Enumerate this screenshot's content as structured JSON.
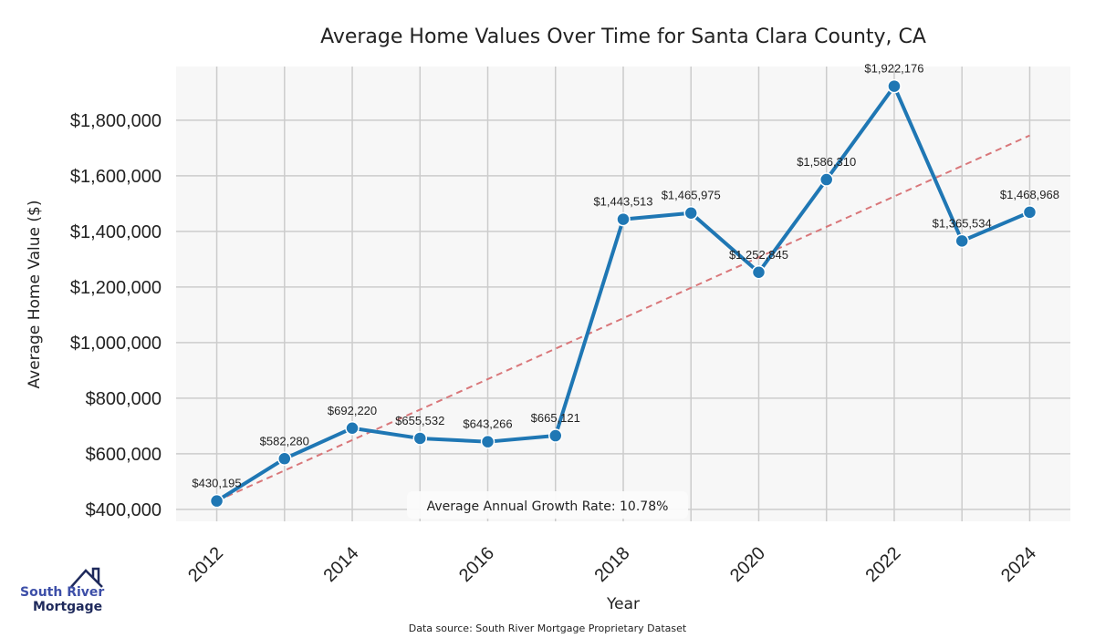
{
  "chart_data": {
    "type": "line",
    "title": "Average Home Values Over Time for Santa Clara County, CA",
    "xlabel": "Year",
    "ylabel": "Average Home Value ($)",
    "x": [
      2012,
      2013,
      2014,
      2015,
      2016,
      2017,
      2018,
      2019,
      2020,
      2021,
      2022,
      2023,
      2024
    ],
    "series": [
      {
        "name": "Average Home Value",
        "color": "#1f77b4",
        "values": [
          430195,
          582280,
          692220,
          655532,
          643266,
          665121,
          1443513,
          1465975,
          1252845,
          1586310,
          1922176,
          1365534,
          1468968
        ],
        "labels": [
          "$430,195",
          "$582,280",
          "$692,220",
          "$655,532",
          "$643,266",
          "$665,121",
          "$1,443,513",
          "$1,465,975",
          "$1,252,845",
          "$1,586,310",
          "$1,922,176",
          "$1,365,534",
          "$1,468,968"
        ]
      },
      {
        "name": "Trend",
        "color": "#d9777a",
        "style": "dashed",
        "start": [
          2012,
          430195
        ],
        "end": [
          2024,
          1745000
        ]
      }
    ],
    "xticks": [
      2012,
      2014,
      2016,
      2018,
      2020,
      2022,
      2024
    ],
    "xtick_labels": [
      "2012",
      "2014",
      "2016",
      "2018",
      "2020",
      "2022",
      "2024"
    ],
    "yticks": [
      400000,
      600000,
      800000,
      1000000,
      1200000,
      1400000,
      1600000,
      1800000
    ],
    "ytick_labels": [
      "$400,000",
      "$600,000",
      "$800,000",
      "$1,000,000",
      "$1,200,000",
      "$1,400,000",
      "$1,600,000",
      "$1,800,000"
    ],
    "xlim": [
      2011.4,
      2024.6
    ],
    "ylim": [
      357000,
      1993000
    ],
    "grid": true,
    "annotation": "Average Annual Growth Rate: 10.78%",
    "background": "#f7f7f7",
    "grid_color": "#cccccc"
  },
  "footer": {
    "source": "Data source: South River Mortgage Proprietary Dataset"
  },
  "logo": {
    "line1": "South River",
    "line2": "Mortgage",
    "icon": "house-roof-icon"
  }
}
